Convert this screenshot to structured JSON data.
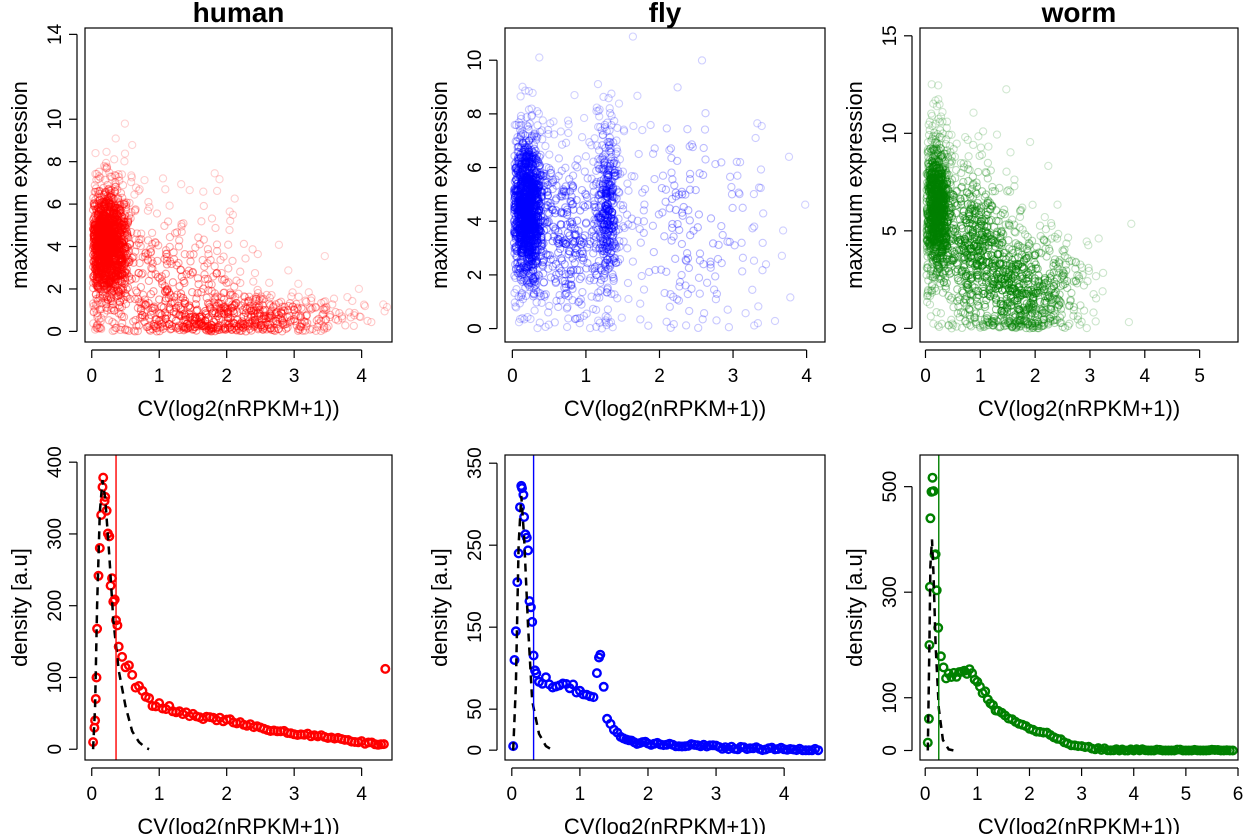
{
  "chart_data": [
    {
      "type": "scatter",
      "row": "top",
      "title": "human",
      "xlabel": "CV(log2(nRPKM+1))",
      "ylabel": "maximum expression",
      "xlim": [
        -0.1,
        4.45
      ],
      "ylim": [
        -0.5,
        14.3
      ],
      "xticks": [
        "0",
        "1",
        "2",
        "3",
        "4"
      ],
      "xtick_values": [
        0,
        1,
        2,
        3,
        4
      ],
      "yticks": [
        "0",
        "2",
        "4",
        "6",
        "8",
        "10",
        "14"
      ],
      "ytick_values": [
        0,
        2,
        4,
        6,
        8,
        10,
        14
      ],
      "color": "#ff0000",
      "marker": "open-circle",
      "density_clusters": [
        {
          "x": 0.25,
          "y": 4.2,
          "sx": 0.18,
          "sy": 1.5,
          "w": 0.55
        },
        {
          "x": 1.2,
          "y": 2.0,
          "sx": 0.7,
          "sy": 2.0,
          "w": 0.2
        },
        {
          "x": 2.3,
          "y": 0.6,
          "sx": 0.9,
          "sy": 0.6,
          "w": 0.25
        }
      ]
    },
    {
      "type": "scatter",
      "row": "top",
      "title": "fly",
      "xlabel": "CV(log2(nRPKM+1))",
      "ylabel": "maximum expression",
      "xlim": [
        -0.1,
        4.25
      ],
      "ylim": [
        -0.5,
        11.2
      ],
      "xticks": [
        "0",
        "1",
        "2",
        "3",
        "4"
      ],
      "xtick_values": [
        0,
        1,
        2,
        3,
        4
      ],
      "yticks": [
        "0",
        "2",
        "4",
        "6",
        "8",
        "10"
      ],
      "ytick_values": [
        0,
        2,
        4,
        6,
        8,
        10
      ],
      "color": "#0000ff",
      "marker": "open-circle",
      "density_clusters": [
        {
          "x": 0.2,
          "y": 4.5,
          "sx": 0.12,
          "sy": 1.5,
          "w": 0.5
        },
        {
          "x": 0.75,
          "y": 3.5,
          "sx": 0.35,
          "sy": 1.8,
          "w": 0.2
        },
        {
          "x": 1.3,
          "y": 4.5,
          "sx": 0.08,
          "sy": 1.8,
          "w": 0.18
        },
        {
          "x": 2.4,
          "y": 4.0,
          "sx": 0.6,
          "sy": 2.5,
          "w": 0.12
        }
      ]
    },
    {
      "type": "scatter",
      "row": "top",
      "title": "worm",
      "xlabel": "CV(log2(nRPKM+1))",
      "ylabel": "maximum expression",
      "xlim": [
        -0.1,
        5.7
      ],
      "ylim": [
        -0.7,
        15.4
      ],
      "xticks": [
        "0",
        "1",
        "2",
        "3",
        "4",
        "5"
      ],
      "xtick_values": [
        0,
        1,
        2,
        3,
        4,
        5
      ],
      "yticks": [
        "0",
        "5",
        "10",
        "15"
      ],
      "ytick_values": [
        0,
        5,
        10,
        15
      ],
      "color": "#008000",
      "marker": "open-circle",
      "density_clusters": [
        {
          "x": 0.2,
          "y": 6.5,
          "sx": 0.12,
          "sy": 1.8,
          "w": 0.4
        },
        {
          "x": 0.8,
          "y": 4.5,
          "sx": 0.45,
          "sy": 2.2,
          "w": 0.3
        },
        {
          "x": 1.8,
          "y": 2.0,
          "sx": 0.6,
          "sy": 1.6,
          "w": 0.3
        }
      ]
    },
    {
      "type": "scatter",
      "row": "bottom",
      "title": "",
      "xlabel": "CV(log2(nRPKM+1))",
      "ylabel": "density [a.u]",
      "xlim": [
        -0.1,
        4.45
      ],
      "ylim": [
        -15,
        410
      ],
      "xticks": [
        "0",
        "1",
        "2",
        "3",
        "4"
      ],
      "xtick_values": [
        0,
        1,
        2,
        3,
        4
      ],
      "yticks": [
        "0",
        "100",
        "200",
        "300",
        "400"
      ],
      "ytick_values": [
        0,
        100,
        200,
        300,
        400
      ],
      "color": "#ff0000",
      "marker": "open-circle",
      "threshold_line": 0.36,
      "points": [
        [
          0.02,
          10
        ],
        [
          0.04,
          30
        ],
        [
          0.05,
          40
        ],
        [
          0.06,
          70
        ],
        [
          0.07,
          100
        ],
        [
          0.08,
          165
        ],
        [
          0.1,
          235
        ],
        [
          0.12,
          280
        ],
        [
          0.14,
          350
        ],
        [
          0.16,
          370
        ],
        [
          0.17,
          398
        ],
        [
          0.19,
          355
        ],
        [
          0.2,
          340
        ],
        [
          0.22,
          325
        ],
        [
          0.24,
          310
        ],
        [
          0.26,
          290
        ],
        [
          0.28,
          240
        ],
        [
          0.3,
          230
        ],
        [
          0.32,
          215
        ],
        [
          0.34,
          200
        ],
        [
          0.36,
          180
        ],
        [
          0.38,
          165
        ],
        [
          0.4,
          150
        ],
        [
          0.45,
          135
        ],
        [
          0.5,
          120
        ],
        [
          0.55,
          110
        ],
        [
          0.6,
          100
        ],
        [
          0.65,
          90
        ],
        [
          0.7,
          85
        ],
        [
          0.8,
          75
        ],
        [
          0.9,
          65
        ],
        [
          1.0,
          60
        ],
        [
          1.2,
          55
        ],
        [
          1.4,
          50
        ],
        [
          1.6,
          45
        ],
        [
          1.8,
          42
        ],
        [
          2.0,
          40
        ],
        [
          2.2,
          36
        ],
        [
          2.4,
          32
        ],
        [
          2.6,
          28
        ],
        [
          2.8,
          25
        ],
        [
          3.0,
          22
        ],
        [
          3.2,
          20
        ],
        [
          3.4,
          18
        ],
        [
          3.6,
          15
        ],
        [
          3.8,
          12
        ],
        [
          4.0,
          10
        ],
        [
          4.2,
          8
        ],
        [
          4.33,
          7
        ],
        [
          4.35,
          112
        ]
      ],
      "reference_curve": [
        [
          0.02,
          0
        ],
        [
          0.05,
          60
        ],
        [
          0.08,
          200
        ],
        [
          0.12,
          330
        ],
        [
          0.16,
          375
        ],
        [
          0.2,
          350
        ],
        [
          0.26,
          270
        ],
        [
          0.32,
          180
        ],
        [
          0.4,
          110
        ],
        [
          0.5,
          60
        ],
        [
          0.6,
          25
        ],
        [
          0.7,
          10
        ],
        [
          0.8,
          2
        ],
        [
          0.85,
          0
        ]
      ]
    },
    {
      "type": "scatter",
      "row": "bottom",
      "title": "",
      "xlabel": "CV(log2(nRPKM+1))",
      "ylabel": "density [a.u]",
      "xlim": [
        -0.1,
        4.6
      ],
      "ylim": [
        -12,
        360
      ],
      "xticks": [
        "0",
        "1",
        "2",
        "3",
        "4"
      ],
      "xtick_values": [
        0,
        1,
        2,
        3,
        4
      ],
      "yticks": [
        "0",
        "50",
        "150",
        "250",
        "350"
      ],
      "ytick_values": [
        0,
        50,
        150,
        250,
        350
      ],
      "color": "#0000ff",
      "marker": "open-circle",
      "threshold_line": 0.32,
      "points": [
        [
          0.02,
          5
        ],
        [
          0.04,
          110
        ],
        [
          0.06,
          145
        ],
        [
          0.08,
          205
        ],
        [
          0.1,
          240
        ],
        [
          0.12,
          280
        ],
        [
          0.14,
          330
        ],
        [
          0.15,
          345
        ],
        [
          0.17,
          320
        ],
        [
          0.18,
          305
        ],
        [
          0.2,
          280
        ],
        [
          0.22,
          270
        ],
        [
          0.24,
          240
        ],
        [
          0.26,
          185
        ],
        [
          0.28,
          170
        ],
        [
          0.3,
          150
        ],
        [
          0.32,
          120
        ],
        [
          0.34,
          100
        ],
        [
          0.36,
          95
        ],
        [
          0.4,
          90
        ],
        [
          0.5,
          85
        ],
        [
          0.6,
          82
        ],
        [
          0.7,
          80
        ],
        [
          0.8,
          85
        ],
        [
          0.9,
          75
        ],
        [
          1.0,
          72
        ],
        [
          1.1,
          65
        ],
        [
          1.2,
          70
        ],
        [
          1.25,
          100
        ],
        [
          1.28,
          115
        ],
        [
          1.3,
          110
        ],
        [
          1.35,
          80
        ],
        [
          1.4,
          40
        ],
        [
          1.5,
          25
        ],
        [
          1.6,
          15
        ],
        [
          1.8,
          10
        ],
        [
          2.0,
          8
        ],
        [
          2.5,
          6
        ],
        [
          3.0,
          4
        ],
        [
          3.5,
          2
        ],
        [
          4.0,
          1
        ],
        [
          4.5,
          0
        ]
      ],
      "reference_curve": [
        [
          0.02,
          0
        ],
        [
          0.06,
          80
        ],
        [
          0.1,
          250
        ],
        [
          0.14,
          310
        ],
        [
          0.18,
          260
        ],
        [
          0.24,
          150
        ],
        [
          0.3,
          60
        ],
        [
          0.4,
          20
        ],
        [
          0.5,
          5
        ],
        [
          0.6,
          0
        ]
      ]
    },
    {
      "type": "scatter",
      "row": "bottom",
      "title": "",
      "xlabel": "CV(log2(nRPKM+1))",
      "ylabel": "density [a.u]",
      "xlim": [
        -0.1,
        6.0
      ],
      "ylim": [
        -18,
        560
      ],
      "xticks": [
        "0",
        "1",
        "2",
        "3",
        "4",
        "5",
        "6"
      ],
      "xtick_values": [
        0,
        1,
        2,
        3,
        4,
        5,
        6
      ],
      "yticks": [
        "0",
        "100",
        "300",
        "500"
      ],
      "ytick_values": [
        0,
        100,
        300,
        500
      ],
      "color": "#008000",
      "marker": "open-circle",
      "threshold_line": 0.26,
      "points": [
        [
          0.05,
          15
        ],
        [
          0.07,
          60
        ],
        [
          0.08,
          200
        ],
        [
          0.09,
          310
        ],
        [
          0.1,
          440
        ],
        [
          0.12,
          500
        ],
        [
          0.14,
          540
        ],
        [
          0.16,
          470
        ],
        [
          0.18,
          400
        ],
        [
          0.2,
          360
        ],
        [
          0.22,
          300
        ],
        [
          0.25,
          230
        ],
        [
          0.3,
          170
        ],
        [
          0.35,
          150
        ],
        [
          0.4,
          140
        ],
        [
          0.5,
          145
        ],
        [
          0.6,
          150
        ],
        [
          0.7,
          160
        ],
        [
          0.8,
          155
        ],
        [
          0.9,
          140
        ],
        [
          1.0,
          130
        ],
        [
          1.1,
          115
        ],
        [
          1.2,
          100
        ],
        [
          1.3,
          85
        ],
        [
          1.4,
          75
        ],
        [
          1.6,
          60
        ],
        [
          1.8,
          50
        ],
        [
          2.0,
          40
        ],
        [
          2.2,
          35
        ],
        [
          2.4,
          30
        ],
        [
          2.6,
          20
        ],
        [
          2.8,
          12
        ],
        [
          3.0,
          8
        ],
        [
          3.2,
          4
        ],
        [
          3.5,
          2
        ],
        [
          4.0,
          1
        ],
        [
          4.5,
          0
        ],
        [
          5.0,
          0
        ],
        [
          5.5,
          0
        ],
        [
          5.9,
          0
        ]
      ],
      "reference_curve": [
        [
          0.05,
          0
        ],
        [
          0.08,
          200
        ],
        [
          0.1,
          350
        ],
        [
          0.13,
          400
        ],
        [
          0.16,
          330
        ],
        [
          0.2,
          200
        ],
        [
          0.26,
          80
        ],
        [
          0.34,
          20
        ],
        [
          0.45,
          2
        ],
        [
          0.55,
          0
        ]
      ]
    }
  ]
}
